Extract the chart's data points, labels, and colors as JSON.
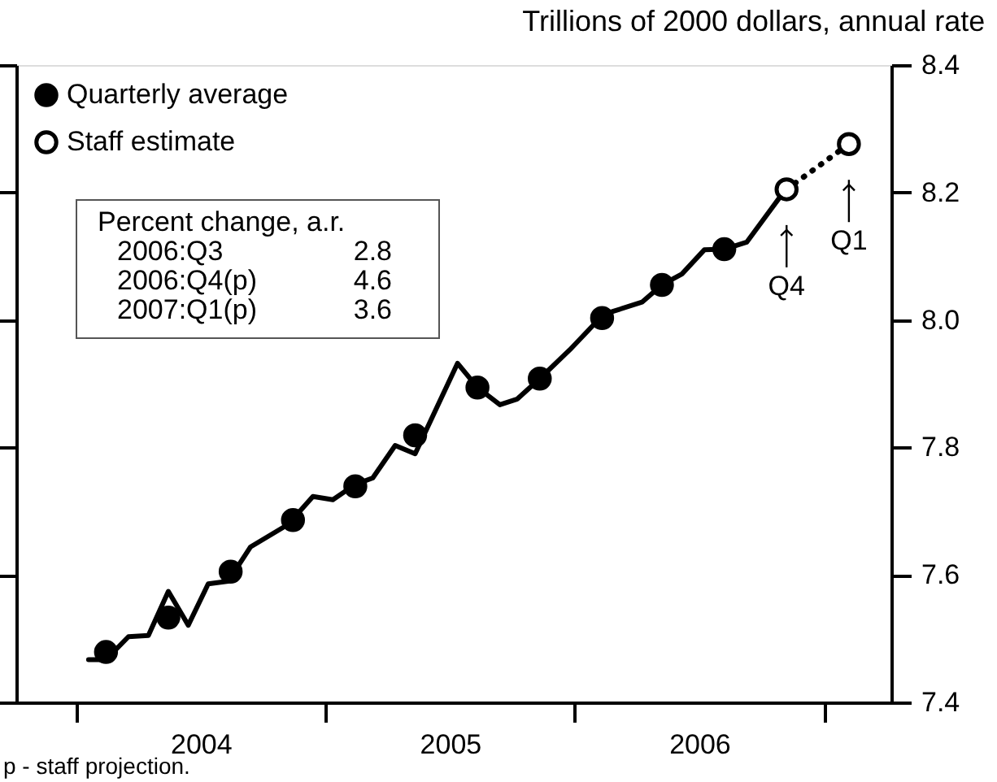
{
  "chart_data": {
    "type": "line",
    "ylabel": "Trillions of 2000 dollars, annual rate",
    "xlim": [
      2003.76,
      2007.27
    ],
    "ylim": [
      7.4,
      8.4
    ],
    "xticks": [
      {
        "value": 2004,
        "label": null
      },
      {
        "value": 2004.5,
        "label": "2004"
      },
      {
        "value": 2005,
        "label": null
      },
      {
        "value": 2005.5,
        "label": "2005"
      },
      {
        "value": 2006,
        "label": null
      },
      {
        "value": 2006.5,
        "label": "2006"
      },
      {
        "value": 2007,
        "label": null
      }
    ],
    "yticks": [
      {
        "value": 7.4,
        "label": "7.4"
      },
      {
        "value": 7.6,
        "label": "7.6"
      },
      {
        "value": 7.8,
        "label": "7.8"
      },
      {
        "value": 8.0,
        "label": "8.0"
      },
      {
        "value": 8.2,
        "label": "8.2"
      },
      {
        "value": 8.4,
        "label": "8.4"
      }
    ],
    "grid": false,
    "legend": "top left",
    "series": [
      {
        "color": "#000000",
        "marker": "none",
        "line_style": "solid",
        "x": [
          2004.05,
          2004.12,
          2004.21,
          2004.29,
          2004.37,
          2004.45,
          2004.53,
          2004.61,
          2004.7,
          2004.85,
          2004.95,
          2005.03,
          2005.12,
          2005.19,
          2005.28,
          2005.36,
          2005.53,
          2005.61,
          2005.7,
          2005.77,
          2005.86,
          2005.98,
          2006.08,
          2006.15,
          2006.27,
          2006.35,
          2006.43,
          2006.52,
          2006.6,
          2006.69,
          2006.82
        ],
        "values": [
          7.467,
          7.467,
          7.503,
          7.505,
          7.574,
          7.521,
          7.586,
          7.59,
          7.644,
          7.679,
          7.723,
          7.718,
          7.742,
          7.752,
          7.803,
          7.79,
          7.932,
          7.894,
          7.867,
          7.876,
          7.908,
          7.953,
          7.994,
          8.013,
          8.028,
          8.055,
          8.072,
          8.11,
          8.111,
          8.122,
          8.191
        ]
      },
      {
        "name": "Quarterly average",
        "type": "scatter",
        "color": "#000000",
        "marker": "circle",
        "x": [
          2004.12,
          2004.37,
          2004.62,
          2004.87,
          2005.12,
          2005.36,
          2005.61,
          2005.86,
          2006.11,
          2006.35,
          2006.6
        ],
        "values": [
          7.479,
          7.533,
          7.605,
          7.686,
          7.739,
          7.819,
          7.894,
          7.908,
          8.003,
          8.055,
          8.111
        ]
      },
      {
        "name": "Staff estimate",
        "type": "line",
        "line_style": "dotted",
        "color": "#000000",
        "marker": "circle",
        "x": [
          2006.85,
          2007.1
        ],
        "values": [
          8.205,
          8.276
        ]
      }
    ],
    "annotations": [
      {
        "text": "Q4",
        "x": 2006.85,
        "y": 8.205
      },
      {
        "text": "Q1",
        "x": 2007.1,
        "y": 8.276
      },
      "Percent change, a.r.",
      "2006:Q3",
      "2.8",
      "2006:Q4(p)",
      "4.6",
      "2007:Q1(p)",
      "3.6",
      "p - staff projection."
    ]
  }
}
